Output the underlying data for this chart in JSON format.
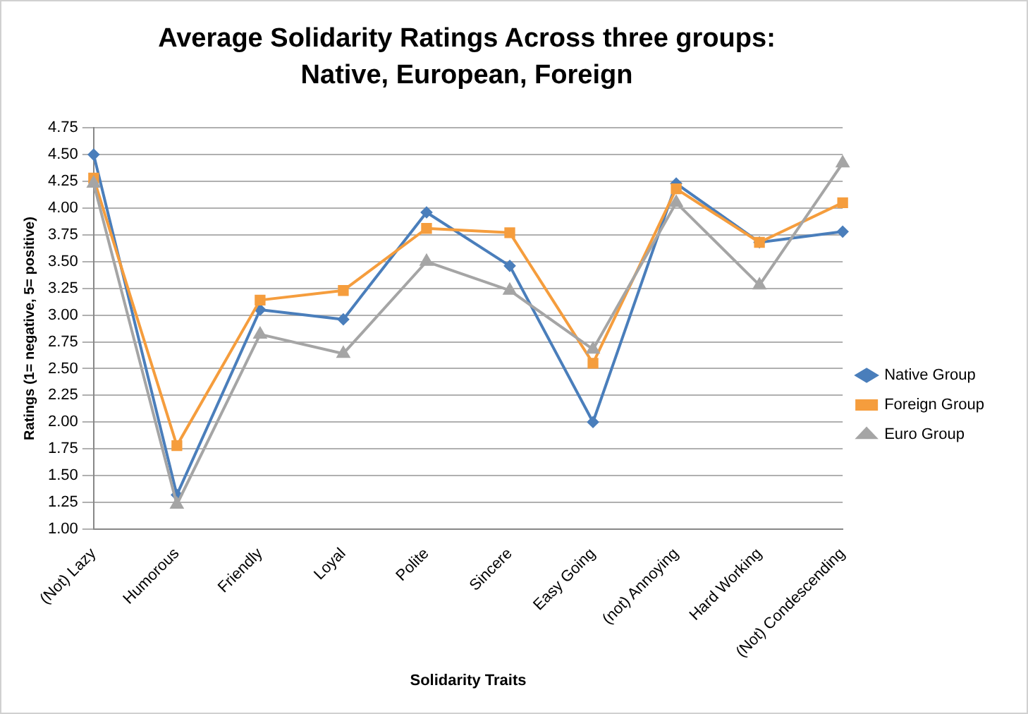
{
  "chart_data": {
    "type": "line",
    "title": "Average Solidarity Ratings Across three groups: Native, European, Foreign",
    "xlabel": "Solidarity Traits",
    "ylabel": "Ratings (1= negative, 5= positive)",
    "categories": [
      "(Not) Lazy",
      "Humorous",
      "Friendly",
      "Loyal",
      "Polite",
      "Sincere",
      "Easy Going",
      "(not) Annoying",
      "Hard Working",
      "(Not) Condescending"
    ],
    "series": [
      {
        "name": "Native Group",
        "color": "#4a7ebb",
        "marker": "diamond",
        "values": [
          4.5,
          1.32,
          3.05,
          2.96,
          3.96,
          3.46,
          2.0,
          4.23,
          3.68,
          3.78
        ]
      },
      {
        "name": "Foreign Group",
        "color": "#f59d3d",
        "marker": "square",
        "values": [
          4.28,
          1.78,
          3.14,
          3.23,
          3.81,
          3.77,
          2.55,
          4.18,
          3.68,
          4.05
        ]
      },
      {
        "name": "Euro Group",
        "color": "#a5a5a5",
        "marker": "triangle",
        "values": [
          4.23,
          1.23,
          2.82,
          2.64,
          3.5,
          3.23,
          2.68,
          4.05,
          3.28,
          4.42
        ]
      }
    ],
    "ylim": [
      1,
      4.75
    ],
    "yticks": [
      {
        "value": 1,
        "label": "1.00"
      },
      1.25,
      {
        "value": 1.5,
        "label": "1.50"
      },
      1.75,
      {
        "value": 2,
        "label": "2.00"
      },
      2.25,
      {
        "value": 2.5,
        "label": "2.50"
      },
      2.75,
      {
        "value": 3,
        "label": "3.00"
      },
      3.25,
      {
        "value": 3.5,
        "label": "3.50"
      },
      3.75,
      {
        "value": 4,
        "label": "4.00"
      },
      4.25,
      {
        "value": 4.5,
        "label": "4.50"
      },
      4.75
    ],
    "grid": "y",
    "legend": "right"
  }
}
